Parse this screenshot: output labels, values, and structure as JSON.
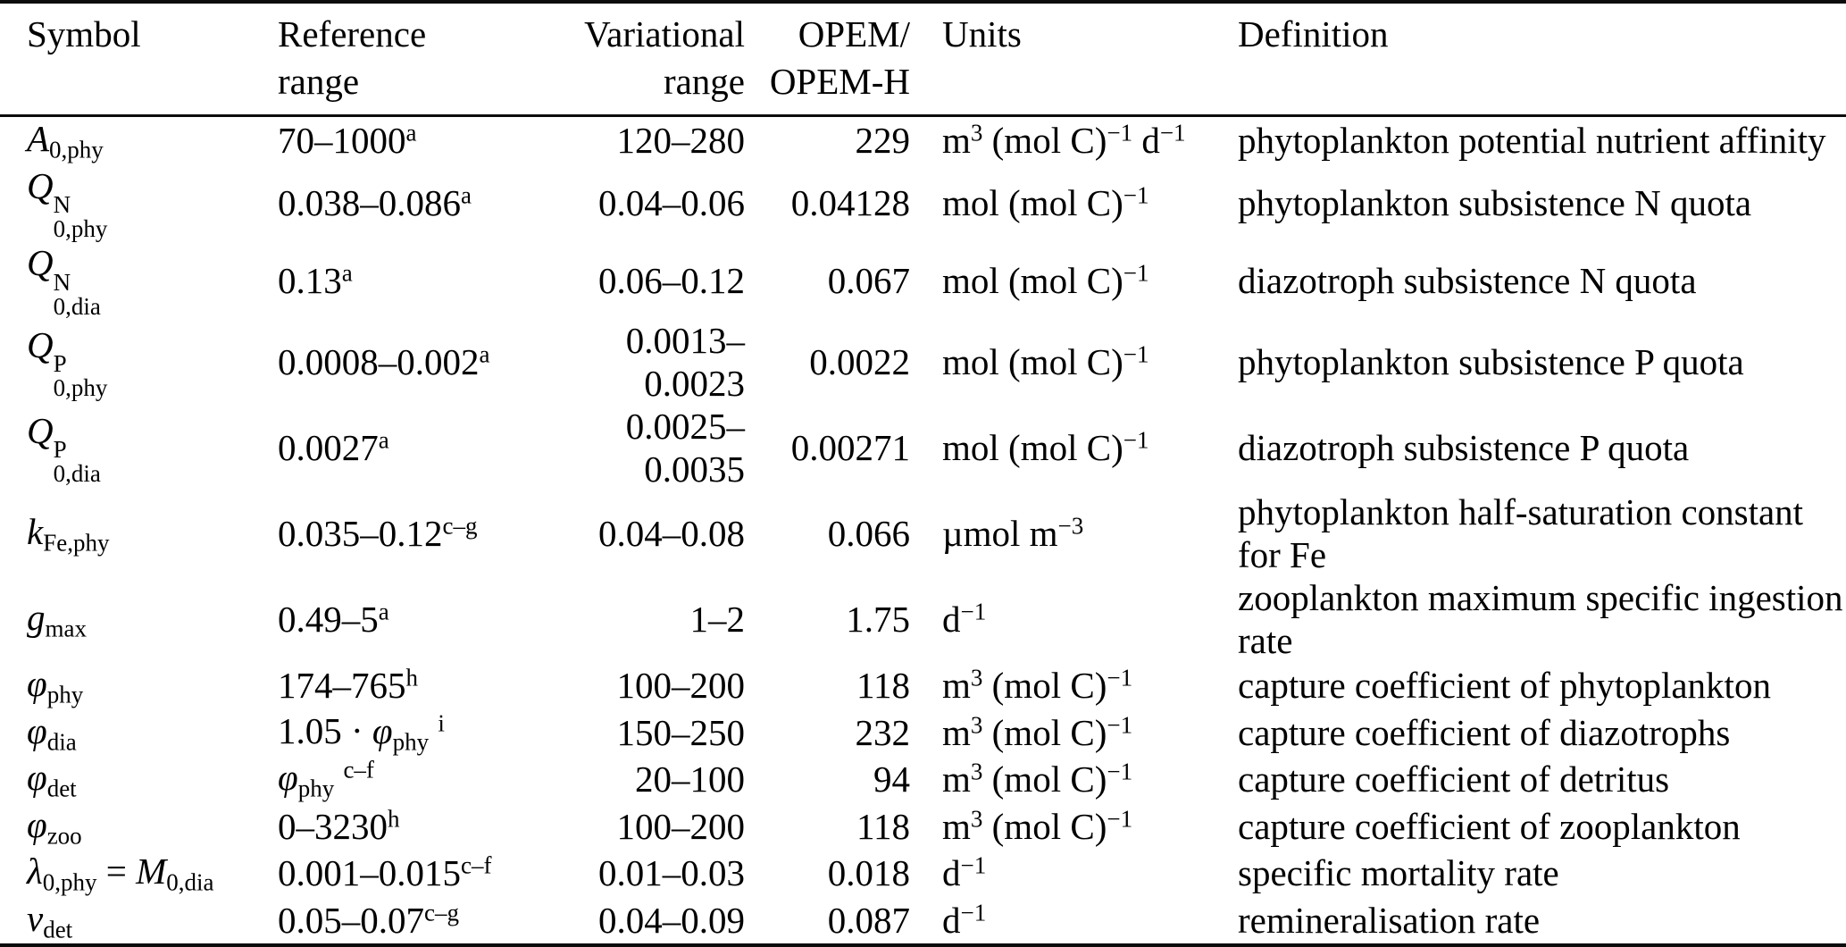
{
  "table": {
    "headers": {
      "symbol": "Symbol",
      "reference_range": [
        "Reference",
        "range"
      ],
      "variational_range": [
        "Variational",
        "range"
      ],
      "opem": [
        "OPEM/",
        "OPEM-H"
      ],
      "units": "Units",
      "definition": "Definition"
    },
    "rows": [
      {
        "symbol": [
          {
            "t": "v",
            "x": "A"
          },
          {
            "t": "sub",
            "x": "0,phy"
          }
        ],
        "reference": [
          {
            "t": "p",
            "x": "70–1000"
          },
          {
            "t": "sup",
            "x": "a"
          }
        ],
        "variational": "120–280",
        "opem": "229",
        "units": [
          {
            "t": "p",
            "x": "m"
          },
          {
            "t": "sup",
            "x": "3"
          },
          {
            "t": "p",
            "x": " (mol C)"
          },
          {
            "t": "sup",
            "x": "−1"
          },
          {
            "t": "p",
            "x": " d"
          },
          {
            "t": "sup",
            "x": "−1"
          }
        ],
        "definition": "phytoplankton potential nutrient affinity"
      },
      {
        "symbol": [
          {
            "t": "v",
            "x": "Q"
          },
          {
            "t": "ss",
            "sup": "N",
            "sub": "0,phy"
          }
        ],
        "reference": [
          {
            "t": "p",
            "x": "0.038–0.086"
          },
          {
            "t": "sup",
            "x": "a"
          }
        ],
        "variational": "0.04–0.06",
        "opem": "0.04128",
        "units": [
          {
            "t": "p",
            "x": "mol (mol C)"
          },
          {
            "t": "sup",
            "x": "−1"
          }
        ],
        "definition": "phytoplankton subsistence N quota"
      },
      {
        "symbol": [
          {
            "t": "v",
            "x": "Q"
          },
          {
            "t": "ss",
            "sup": "N",
            "sub": "0,dia"
          }
        ],
        "reference": [
          {
            "t": "p",
            "x": "0.13"
          },
          {
            "t": "sup",
            "x": "a"
          }
        ],
        "variational": "0.06–0.12",
        "opem": "0.067",
        "units": [
          {
            "t": "p",
            "x": "mol (mol C)"
          },
          {
            "t": "sup",
            "x": "−1"
          }
        ],
        "definition": "diazotroph subsistence N quota"
      },
      {
        "symbol": [
          {
            "t": "v",
            "x": "Q"
          },
          {
            "t": "ss",
            "sup": "P",
            "sub": "0,phy"
          }
        ],
        "reference": [
          {
            "t": "p",
            "x": "0.0008–0.002"
          },
          {
            "t": "sup",
            "x": "a"
          }
        ],
        "variational": "0.0013–0.0023",
        "opem": "0.0022",
        "units": [
          {
            "t": "p",
            "x": "mol (mol C)"
          },
          {
            "t": "sup",
            "x": "−1"
          }
        ],
        "definition": "phytoplankton subsistence P quota"
      },
      {
        "symbol": [
          {
            "t": "v",
            "x": "Q"
          },
          {
            "t": "ss",
            "sup": "P",
            "sub": "0,dia"
          }
        ],
        "reference": [
          {
            "t": "p",
            "x": "0.0027"
          },
          {
            "t": "sup",
            "x": "a"
          }
        ],
        "variational": "0.0025–0.0035",
        "opem": "0.00271",
        "units": [
          {
            "t": "p",
            "x": "mol (mol C)"
          },
          {
            "t": "sup",
            "x": "−1"
          }
        ],
        "definition": "diazotroph subsistence P quota"
      },
      {
        "symbol": [
          {
            "t": "v",
            "x": "k"
          },
          {
            "t": "sub",
            "x": "Fe,phy"
          }
        ],
        "reference": [
          {
            "t": "p",
            "x": "0.035–0.12"
          },
          {
            "t": "sup",
            "x": "c–g"
          }
        ],
        "variational": "0.04–0.08",
        "opem": "0.066",
        "units": [
          {
            "t": "p",
            "x": "µmol m"
          },
          {
            "t": "sup",
            "x": "−3"
          }
        ],
        "definition": "phytoplankton half-saturation constant for Fe"
      },
      {
        "symbol": [
          {
            "t": "v",
            "x": "g"
          },
          {
            "t": "sub",
            "x": "max"
          }
        ],
        "reference": [
          {
            "t": "p",
            "x": "0.49–5"
          },
          {
            "t": "sup",
            "x": "a"
          }
        ],
        "variational": "1–2",
        "opem": "1.75",
        "units": [
          {
            "t": "p",
            "x": "d"
          },
          {
            "t": "sup",
            "x": "−1"
          }
        ],
        "definition": "zooplankton maximum specific ingestion rate"
      },
      {
        "symbol": [
          {
            "t": "v",
            "x": "φ"
          },
          {
            "t": "sub",
            "x": "phy"
          }
        ],
        "reference": [
          {
            "t": "p",
            "x": "174–765"
          },
          {
            "t": "sup",
            "x": "h"
          }
        ],
        "variational": "100–200",
        "opem": "118",
        "units": [
          {
            "t": "p",
            "x": "m"
          },
          {
            "t": "sup",
            "x": "3"
          },
          {
            "t": "p",
            "x": " (mol C)"
          },
          {
            "t": "sup",
            "x": "−1"
          }
        ],
        "definition": "capture coefficient of phytoplankton"
      },
      {
        "symbol": [
          {
            "t": "v",
            "x": "φ"
          },
          {
            "t": "sub",
            "x": "dia"
          }
        ],
        "reference": [
          {
            "t": "p",
            "x": "1.05 · "
          },
          {
            "t": "v",
            "x": "φ"
          },
          {
            "t": "sub",
            "x": "phy"
          },
          {
            "t": "p",
            "x": " "
          },
          {
            "t": "sup",
            "x": "i"
          }
        ],
        "variational": "150–250",
        "opem": "232",
        "units": [
          {
            "t": "p",
            "x": "m"
          },
          {
            "t": "sup",
            "x": "3"
          },
          {
            "t": "p",
            "x": " (mol C)"
          },
          {
            "t": "sup",
            "x": "−1"
          }
        ],
        "definition": "capture coefficient of diazotrophs"
      },
      {
        "symbol": [
          {
            "t": "v",
            "x": "φ"
          },
          {
            "t": "sub",
            "x": "det"
          }
        ],
        "reference": [
          {
            "t": "v",
            "x": "φ"
          },
          {
            "t": "sub",
            "x": "phy"
          },
          {
            "t": "p",
            "x": " "
          },
          {
            "t": "sup",
            "x": "c–f"
          }
        ],
        "variational": "20–100",
        "opem": "94",
        "units": [
          {
            "t": "p",
            "x": "m"
          },
          {
            "t": "sup",
            "x": "3"
          },
          {
            "t": "p",
            "x": " (mol C)"
          },
          {
            "t": "sup",
            "x": "−1"
          }
        ],
        "definition": "capture coefficient of detritus"
      },
      {
        "symbol": [
          {
            "t": "v",
            "x": "φ"
          },
          {
            "t": "sub",
            "x": "zoo"
          }
        ],
        "reference": [
          {
            "t": "p",
            "x": "0–3230"
          },
          {
            "t": "sup",
            "x": "h"
          }
        ],
        "variational": "100–200",
        "opem": "118",
        "units": [
          {
            "t": "p",
            "x": "m"
          },
          {
            "t": "sup",
            "x": "3"
          },
          {
            "t": "p",
            "x": " (mol C)"
          },
          {
            "t": "sup",
            "x": "−1"
          }
        ],
        "definition": "capture coefficient of zooplankton"
      },
      {
        "symbol": [
          {
            "t": "v",
            "x": "λ"
          },
          {
            "t": "sub",
            "x": "0,phy"
          },
          {
            "t": "p",
            "x": " = "
          },
          {
            "t": "v",
            "x": "M"
          },
          {
            "t": "sub",
            "x": "0,dia"
          }
        ],
        "reference": [
          {
            "t": "p",
            "x": "0.001–0.015"
          },
          {
            "t": "sup",
            "x": "c–f"
          }
        ],
        "variational": "0.01–0.03",
        "opem": "0.018",
        "units": [
          {
            "t": "p",
            "x": "d"
          },
          {
            "t": "sup",
            "x": "−1"
          }
        ],
        "definition": "specific mortality rate"
      },
      {
        "symbol": [
          {
            "t": "v",
            "x": "ν"
          },
          {
            "t": "sub",
            "x": "det"
          }
        ],
        "reference": [
          {
            "t": "p",
            "x": "0.05–0.07"
          },
          {
            "t": "sup",
            "x": "c–g"
          }
        ],
        "variational": "0.04–0.09",
        "opem": "0.087",
        "units": [
          {
            "t": "p",
            "x": "d"
          },
          {
            "t": "sup",
            "x": "−1"
          }
        ],
        "definition": "remineralisation rate"
      }
    ]
  }
}
